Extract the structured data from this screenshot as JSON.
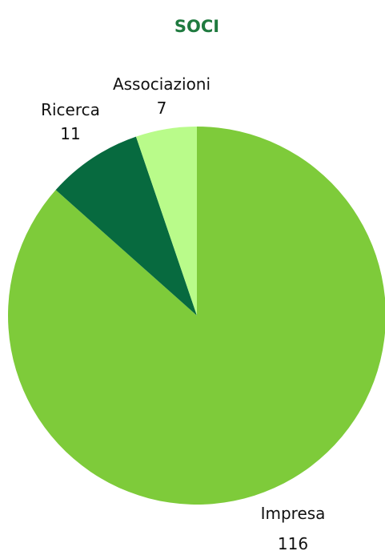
{
  "chart_data": {
    "type": "pie",
    "title": "SOCI",
    "slices": [
      {
        "label": "Impresa",
        "value": 116,
        "color": "#7ecb3a"
      },
      {
        "label": "Ricerca",
        "value": 11,
        "color": "#076a3f"
      },
      {
        "label": "Associazioni",
        "value": 7,
        "color": "#b9fb8a"
      }
    ]
  },
  "colors": {
    "title": "#1f7a3f"
  }
}
